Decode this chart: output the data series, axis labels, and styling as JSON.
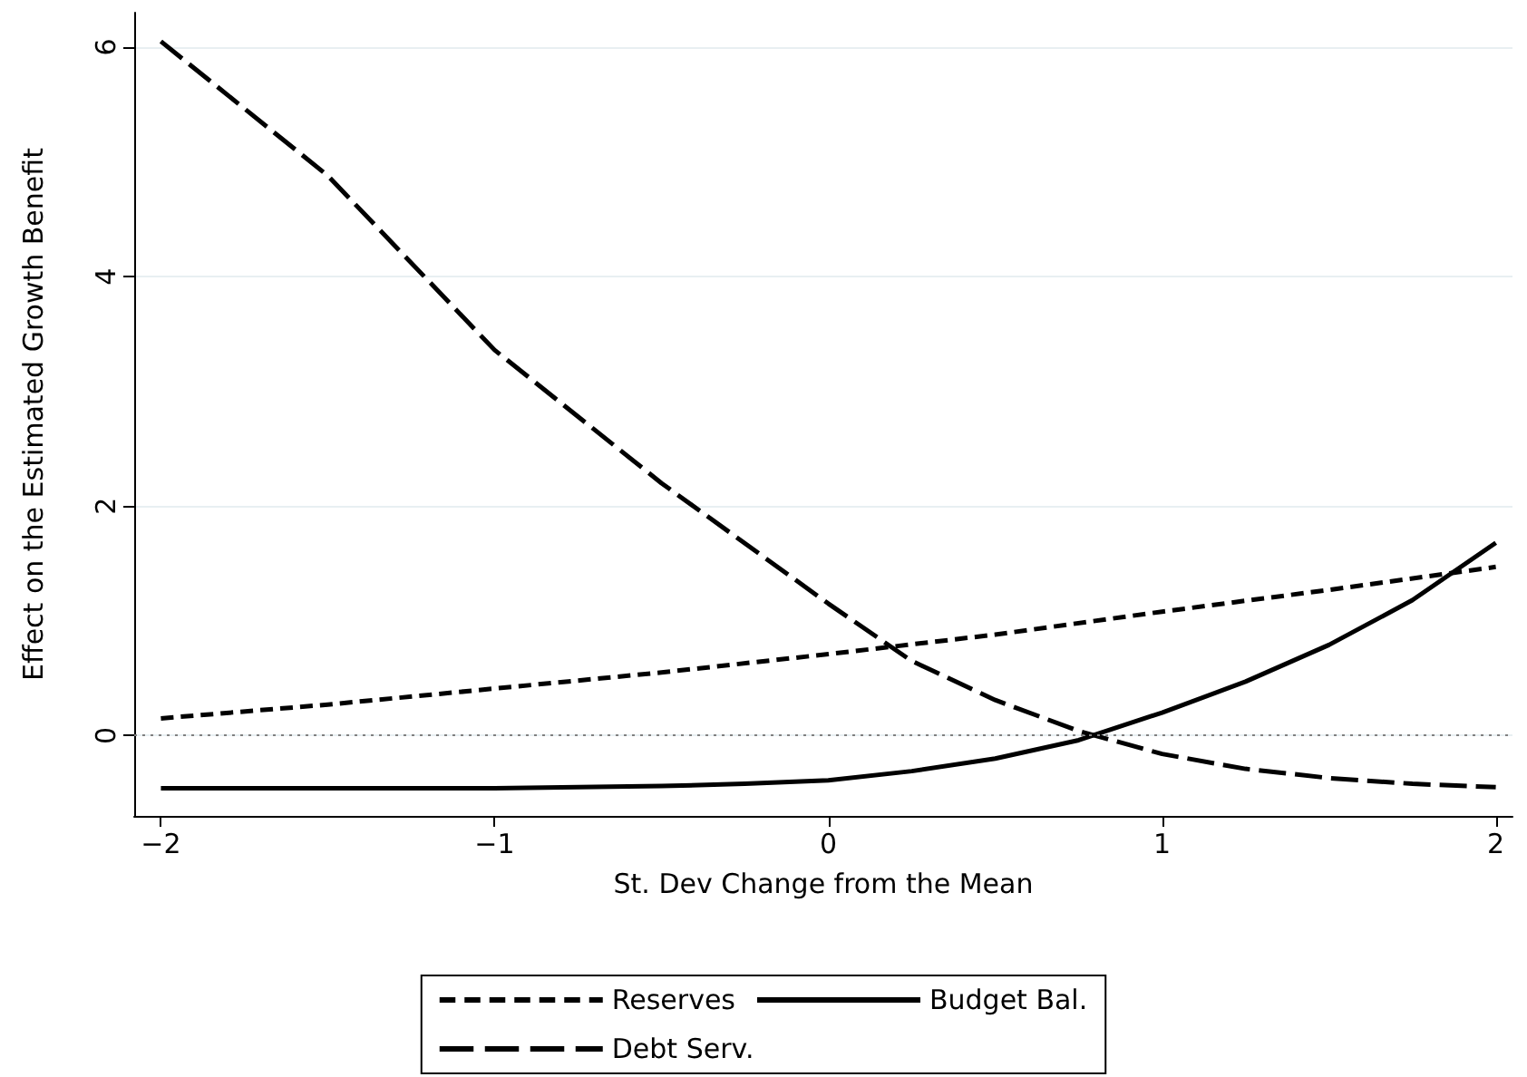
{
  "chart_data": {
    "type": "line",
    "xlabel": "St. Dev Change from the Mean",
    "ylabel": "Effect on the Estimated Growth Benefit",
    "xlim": [
      -2.08,
      2.05
    ],
    "ylim": [
      -0.7,
      6.3
    ],
    "xticks": [
      {
        "value": -2,
        "label": "−2"
      },
      {
        "value": -1,
        "label": "−1"
      },
      0,
      1,
      2
    ],
    "yticks": [
      0,
      2,
      4,
      6
    ],
    "grid": "y",
    "legend": "bottom",
    "marker": "none",
    "ref_lines": [
      {
        "axis": "y",
        "value": 0,
        "color": "#808080",
        "line_style": "dotted"
      }
    ],
    "series": [
      {
        "name": "Reserves",
        "color": "#000000",
        "line_style": "dashed",
        "x": [
          -2,
          -1.5,
          -1,
          -0.5,
          0,
          0.5,
          1,
          1.5,
          2
        ],
        "values": [
          0.15,
          0.27,
          0.41,
          0.55,
          0.71,
          0.88,
          1.08,
          1.27,
          1.47
        ]
      },
      {
        "name": "Budget Bal.",
        "color": "#000000",
        "line_style": "solid",
        "x": [
          -2,
          -1.5,
          -1,
          -0.5,
          -0.25,
          0,
          0.25,
          0.5,
          0.75,
          1,
          1.25,
          1.5,
          1.75,
          2
        ],
        "values": [
          -0.46,
          -0.46,
          -0.46,
          -0.44,
          -0.42,
          -0.39,
          -0.31,
          -0.2,
          -0.04,
          0.2,
          0.47,
          0.79,
          1.18,
          1.68
        ]
      },
      {
        "name": "Debt Serv.",
        "color": "#000000",
        "line_style": "dashed",
        "x": [
          -2,
          -1.5,
          -1,
          -0.5,
          0,
          0.25,
          0.5,
          0.75,
          1,
          1.25,
          1.5,
          1.75,
          2
        ],
        "values": [
          6.05,
          4.88,
          3.36,
          2.2,
          1.15,
          0.65,
          0.31,
          0.04,
          -0.16,
          -0.29,
          -0.37,
          -0.42,
          -0.45
        ]
      }
    ]
  }
}
